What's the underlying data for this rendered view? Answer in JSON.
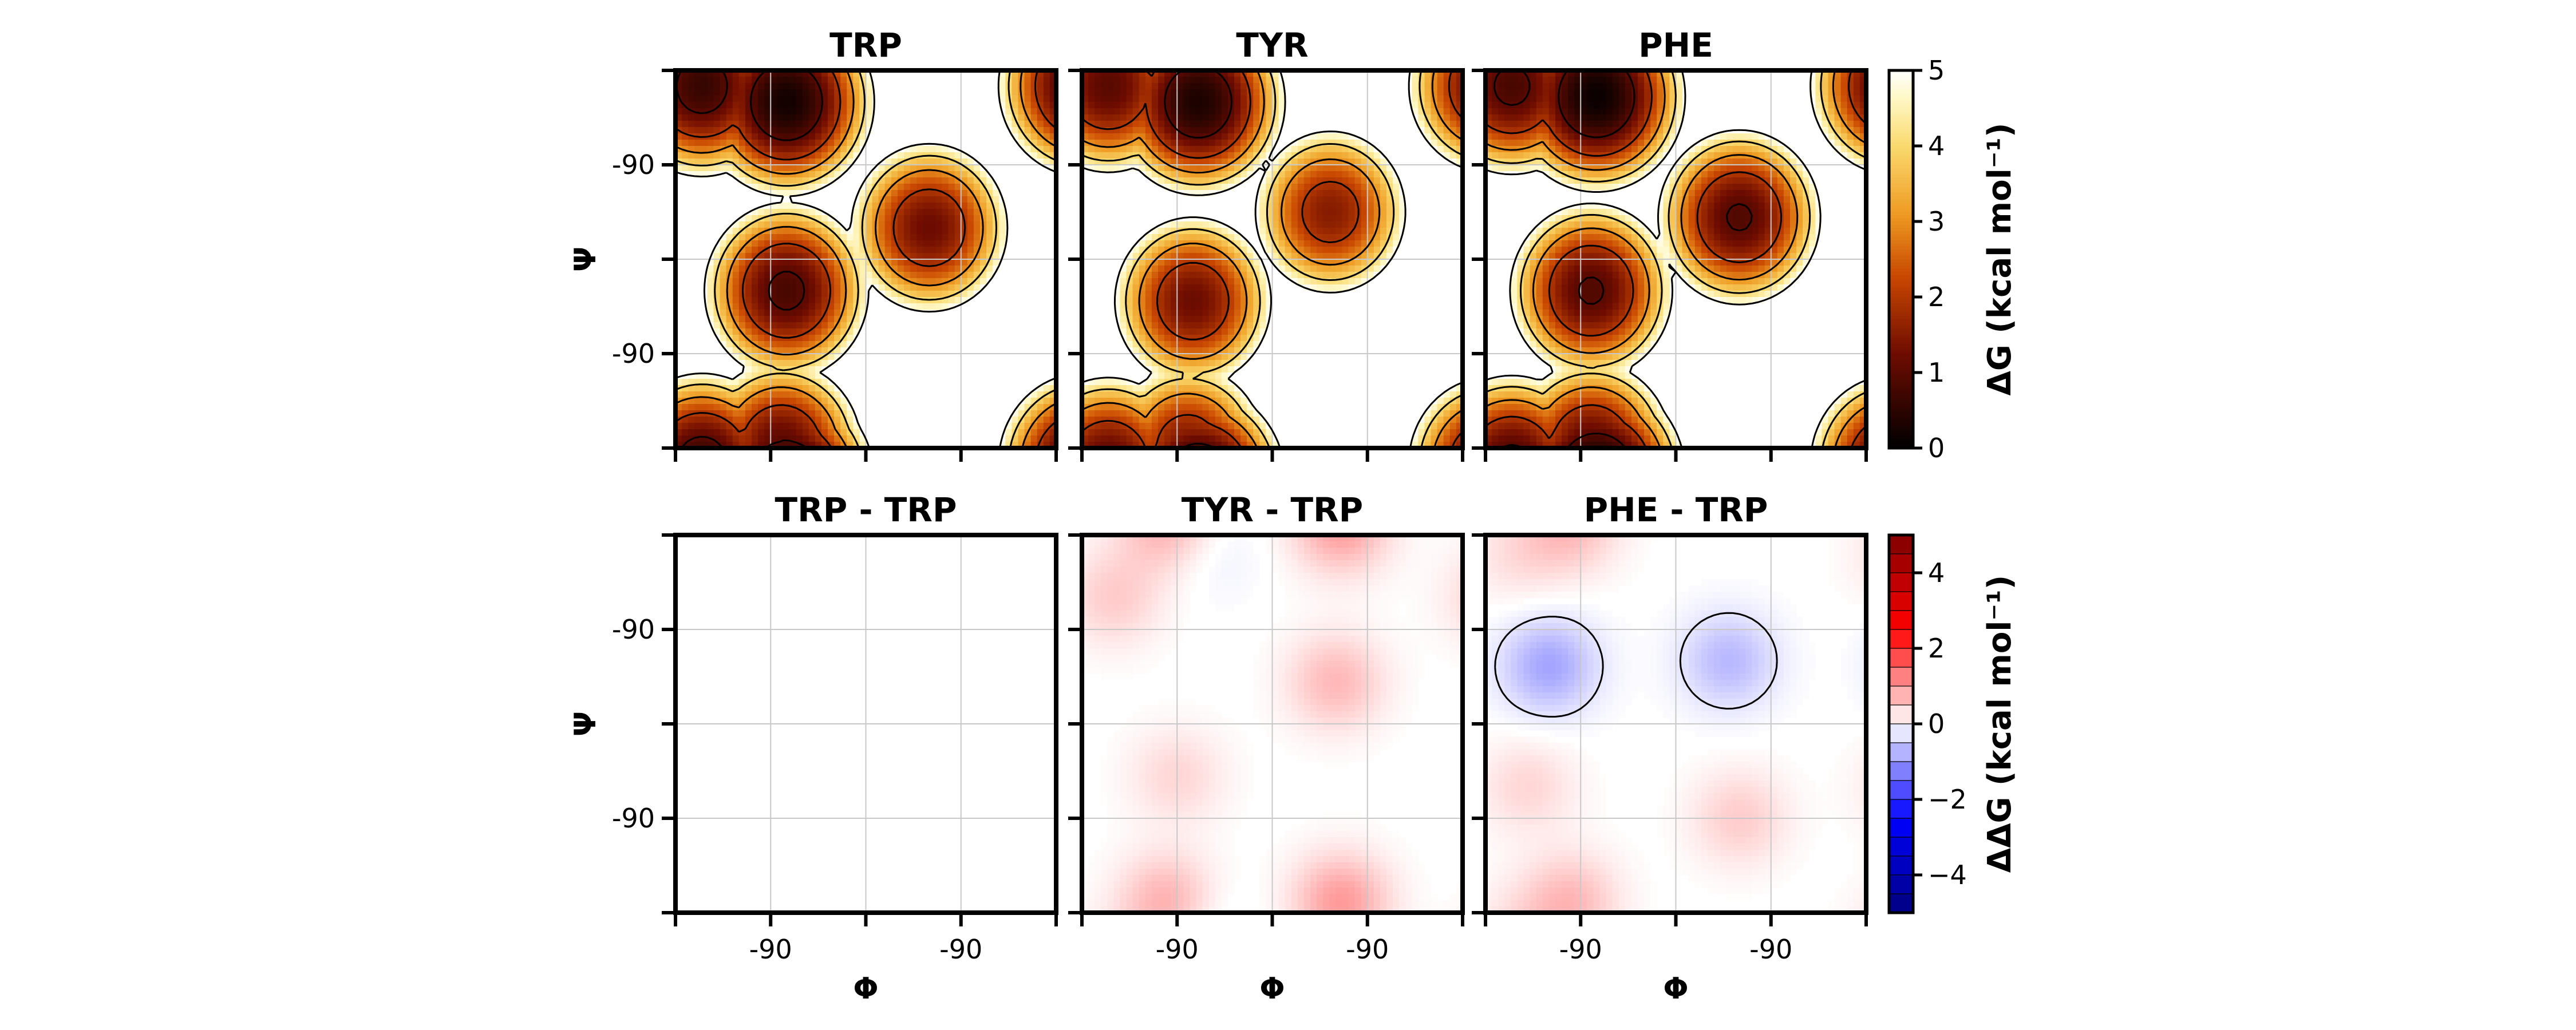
{
  "chart_data": [
    {
      "type": "heatmap",
      "title": "TRP",
      "xlabel": "",
      "ylabel": "Ψ",
      "x_tick_labels": [
        "",
        "-90",
        "",
        "-90",
        ""
      ],
      "y_tick_labels": [
        "",
        "-90",
        "",
        "-90",
        ""
      ],
      "clim": [
        0,
        5
      ],
      "colormap": "afmhot",
      "basins": [
        {
          "phi": -155,
          "psi": 165,
          "dG": 0.6
        },
        {
          "phi": -75,
          "psi": 150,
          "dG": 0.2
        },
        {
          "phi": -75,
          "psi": -30,
          "dG": 0.8
        },
        {
          "phi": 60,
          "psi": 30,
          "dG": 1.2
        },
        {
          "phi": -80,
          "psi": -180,
          "dG": 1.0
        }
      ]
    },
    {
      "type": "heatmap",
      "title": "TYR",
      "xlabel": "",
      "ylabel": "",
      "x_tick_labels": [
        "",
        "-90",
        "",
        "-90",
        ""
      ],
      "y_tick_labels": [
        "",
        "",
        "",
        "",
        ""
      ],
      "clim": [
        0,
        5
      ],
      "colormap": "afmhot",
      "basins": [
        {
          "phi": -155,
          "psi": 165,
          "dG": 1.0
        },
        {
          "phi": -70,
          "psi": 150,
          "dG": 0.3
        },
        {
          "phi": -75,
          "psi": -40,
          "dG": 1.2
        },
        {
          "phi": 55,
          "psi": 45,
          "dG": 1.5
        },
        {
          "phi": -80,
          "psi": -180,
          "dG": 1.4
        }
      ]
    },
    {
      "type": "heatmap",
      "title": "PHE",
      "xlabel": "",
      "ylabel": "",
      "x_tick_labels": [
        "",
        "-90",
        "",
        "-90",
        ""
      ],
      "y_tick_labels": [
        "",
        "",
        "",
        "",
        ""
      ],
      "clim": [
        0,
        5
      ],
      "colormap": "afmhot",
      "basins": [
        {
          "phi": -155,
          "psi": 165,
          "dG": 0.8
        },
        {
          "phi": -75,
          "psi": 155,
          "dG": 0.1
        },
        {
          "phi": -80,
          "psi": -30,
          "dG": 0.9
        },
        {
          "phi": 60,
          "psi": 40,
          "dG": 0.9
        },
        {
          "phi": -80,
          "psi": -180,
          "dG": 1.0
        }
      ]
    },
    {
      "type": "heatmap",
      "title": "TRP - TRP",
      "xlabel": "Φ",
      "ylabel": "Ψ",
      "x_tick_labels": [
        "",
        "-90",
        "",
        "-90",
        ""
      ],
      "y_tick_labels": [
        "",
        "-90",
        "",
        "-90",
        ""
      ],
      "clim": [
        -5,
        5
      ],
      "colormap": "seismic",
      "difference": [
        {
          "phi": 0,
          "psi": 0,
          "ddG": 0.0
        }
      ]
    },
    {
      "type": "heatmap",
      "title": "TYR - TRP",
      "xlabel": "Φ",
      "ylabel": "",
      "x_tick_labels": [
        "",
        "-90",
        "",
        "-90",
        ""
      ],
      "y_tick_labels": [
        "",
        "",
        "",
        "",
        ""
      ],
      "clim": [
        -5,
        5
      ],
      "colormap": "seismic",
      "difference": [
        {
          "phi": -150,
          "psi": 120,
          "ddG": 0.5
        },
        {
          "phi": -90,
          "psi": -50,
          "ddG": 0.4
        },
        {
          "phi": 60,
          "psi": 40,
          "ddG": 0.7
        },
        {
          "phi": -100,
          "psi": -170,
          "ddG": 0.8
        },
        {
          "phi": 65,
          "psi": -170,
          "ddG": 1.0
        },
        {
          "phi": -60,
          "psi": 165,
          "ddG": -0.2
        }
      ]
    },
    {
      "type": "heatmap",
      "title": "PHE - TRP",
      "xlabel": "Φ",
      "ylabel": "",
      "x_tick_labels": [
        "",
        "-90",
        "",
        "-90",
        ""
      ],
      "y_tick_labels": [
        "",
        "",
        "",
        "",
        ""
      ],
      "clim": [
        -5,
        5
      ],
      "colormap": "seismic",
      "difference": [
        {
          "phi": -120,
          "psi": 55,
          "ddG": -0.9
        },
        {
          "phi": 50,
          "psi": 60,
          "ddG": -0.7
        },
        {
          "phi": -140,
          "psi": -60,
          "ddG": 0.4
        },
        {
          "phi": 60,
          "psi": -90,
          "ddG": 0.5
        },
        {
          "phi": -100,
          "psi": -170,
          "ddG": 0.7
        },
        {
          "phi": -150,
          "psi": 160,
          "ddG": 0.3
        }
      ]
    }
  ],
  "colorbars": [
    {
      "label": "ΔG (kcal mol⁻¹)",
      "ticks": [
        "0",
        "1",
        "2",
        "3",
        "4",
        "5"
      ],
      "range": [
        0,
        5
      ]
    },
    {
      "label": "ΔΔG (kcal mol⁻¹)",
      "ticks": [
        "−4",
        "−2",
        "0",
        "2",
        "4"
      ],
      "tick_values": [
        -4,
        -2,
        0,
        2,
        4
      ],
      "range": [
        -5,
        5
      ]
    }
  ]
}
